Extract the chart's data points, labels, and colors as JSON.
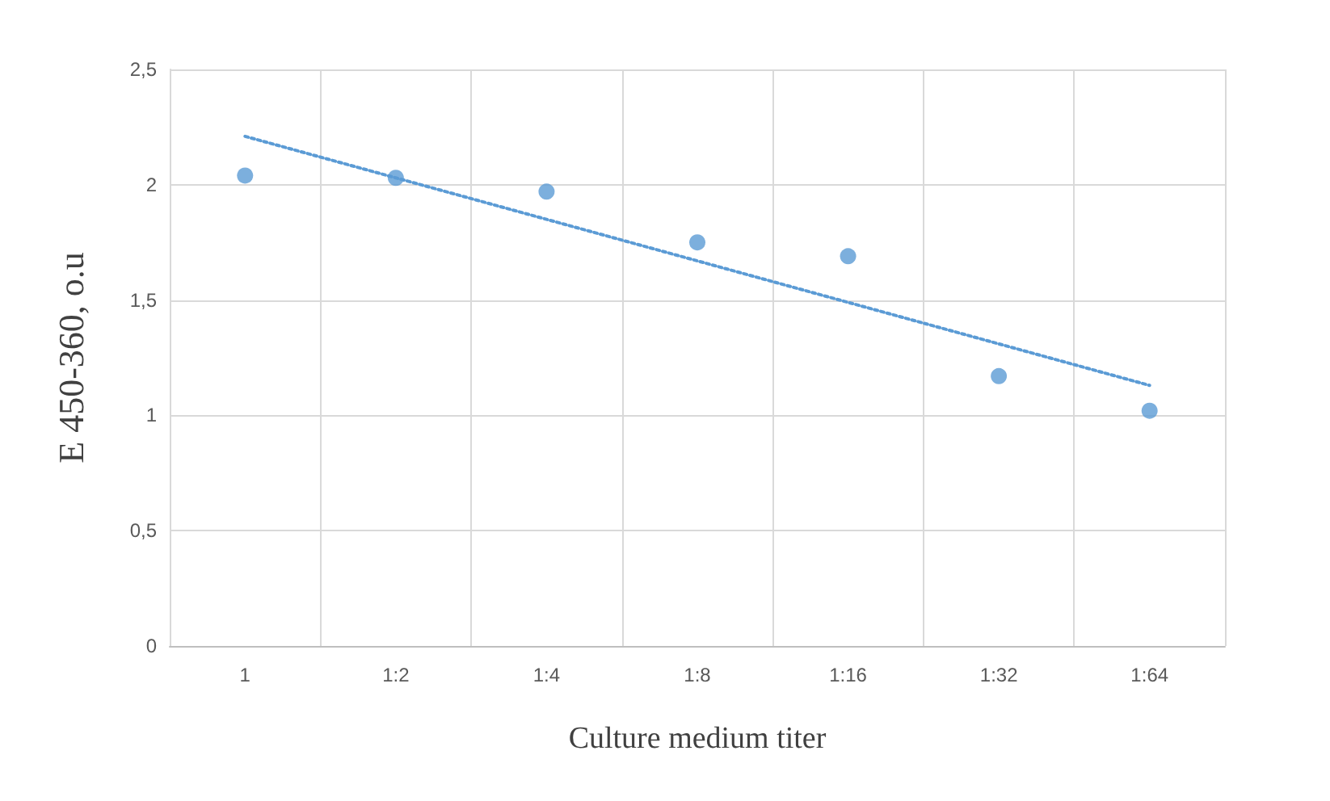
{
  "chart_data": {
    "type": "scatter",
    "xlabel": "Culture medium titer",
    "ylabel": "E 450-360, o.u",
    "categories": [
      "1",
      "1:2",
      "1:4",
      "1:8",
      "1:16",
      "1:32",
      "1:64"
    ],
    "series": [
      {
        "color": "#5b9bd5",
        "values": [
          2.04,
          2.03,
          1.97,
          1.75,
          1.69,
          1.17,
          1.02
        ]
      },
      {
        "type": "line",
        "color": "#5b9bd5",
        "line_style": "dotted",
        "marker": "none",
        "values": [
          2.21,
          2.03,
          1.85,
          1.67,
          1.49,
          1.31,
          1.13
        ]
      }
    ],
    "ylim": [
      0,
      2.5
    ],
    "yticks": [
      0,
      {
        "value": 0.5,
        "label": "0,5"
      },
      1,
      {
        "value": 1.5,
        "label": "1,5"
      },
      2,
      {
        "value": 2.5,
        "label": "2,5"
      }
    ],
    "grid": true,
    "marker": "circle"
  }
}
